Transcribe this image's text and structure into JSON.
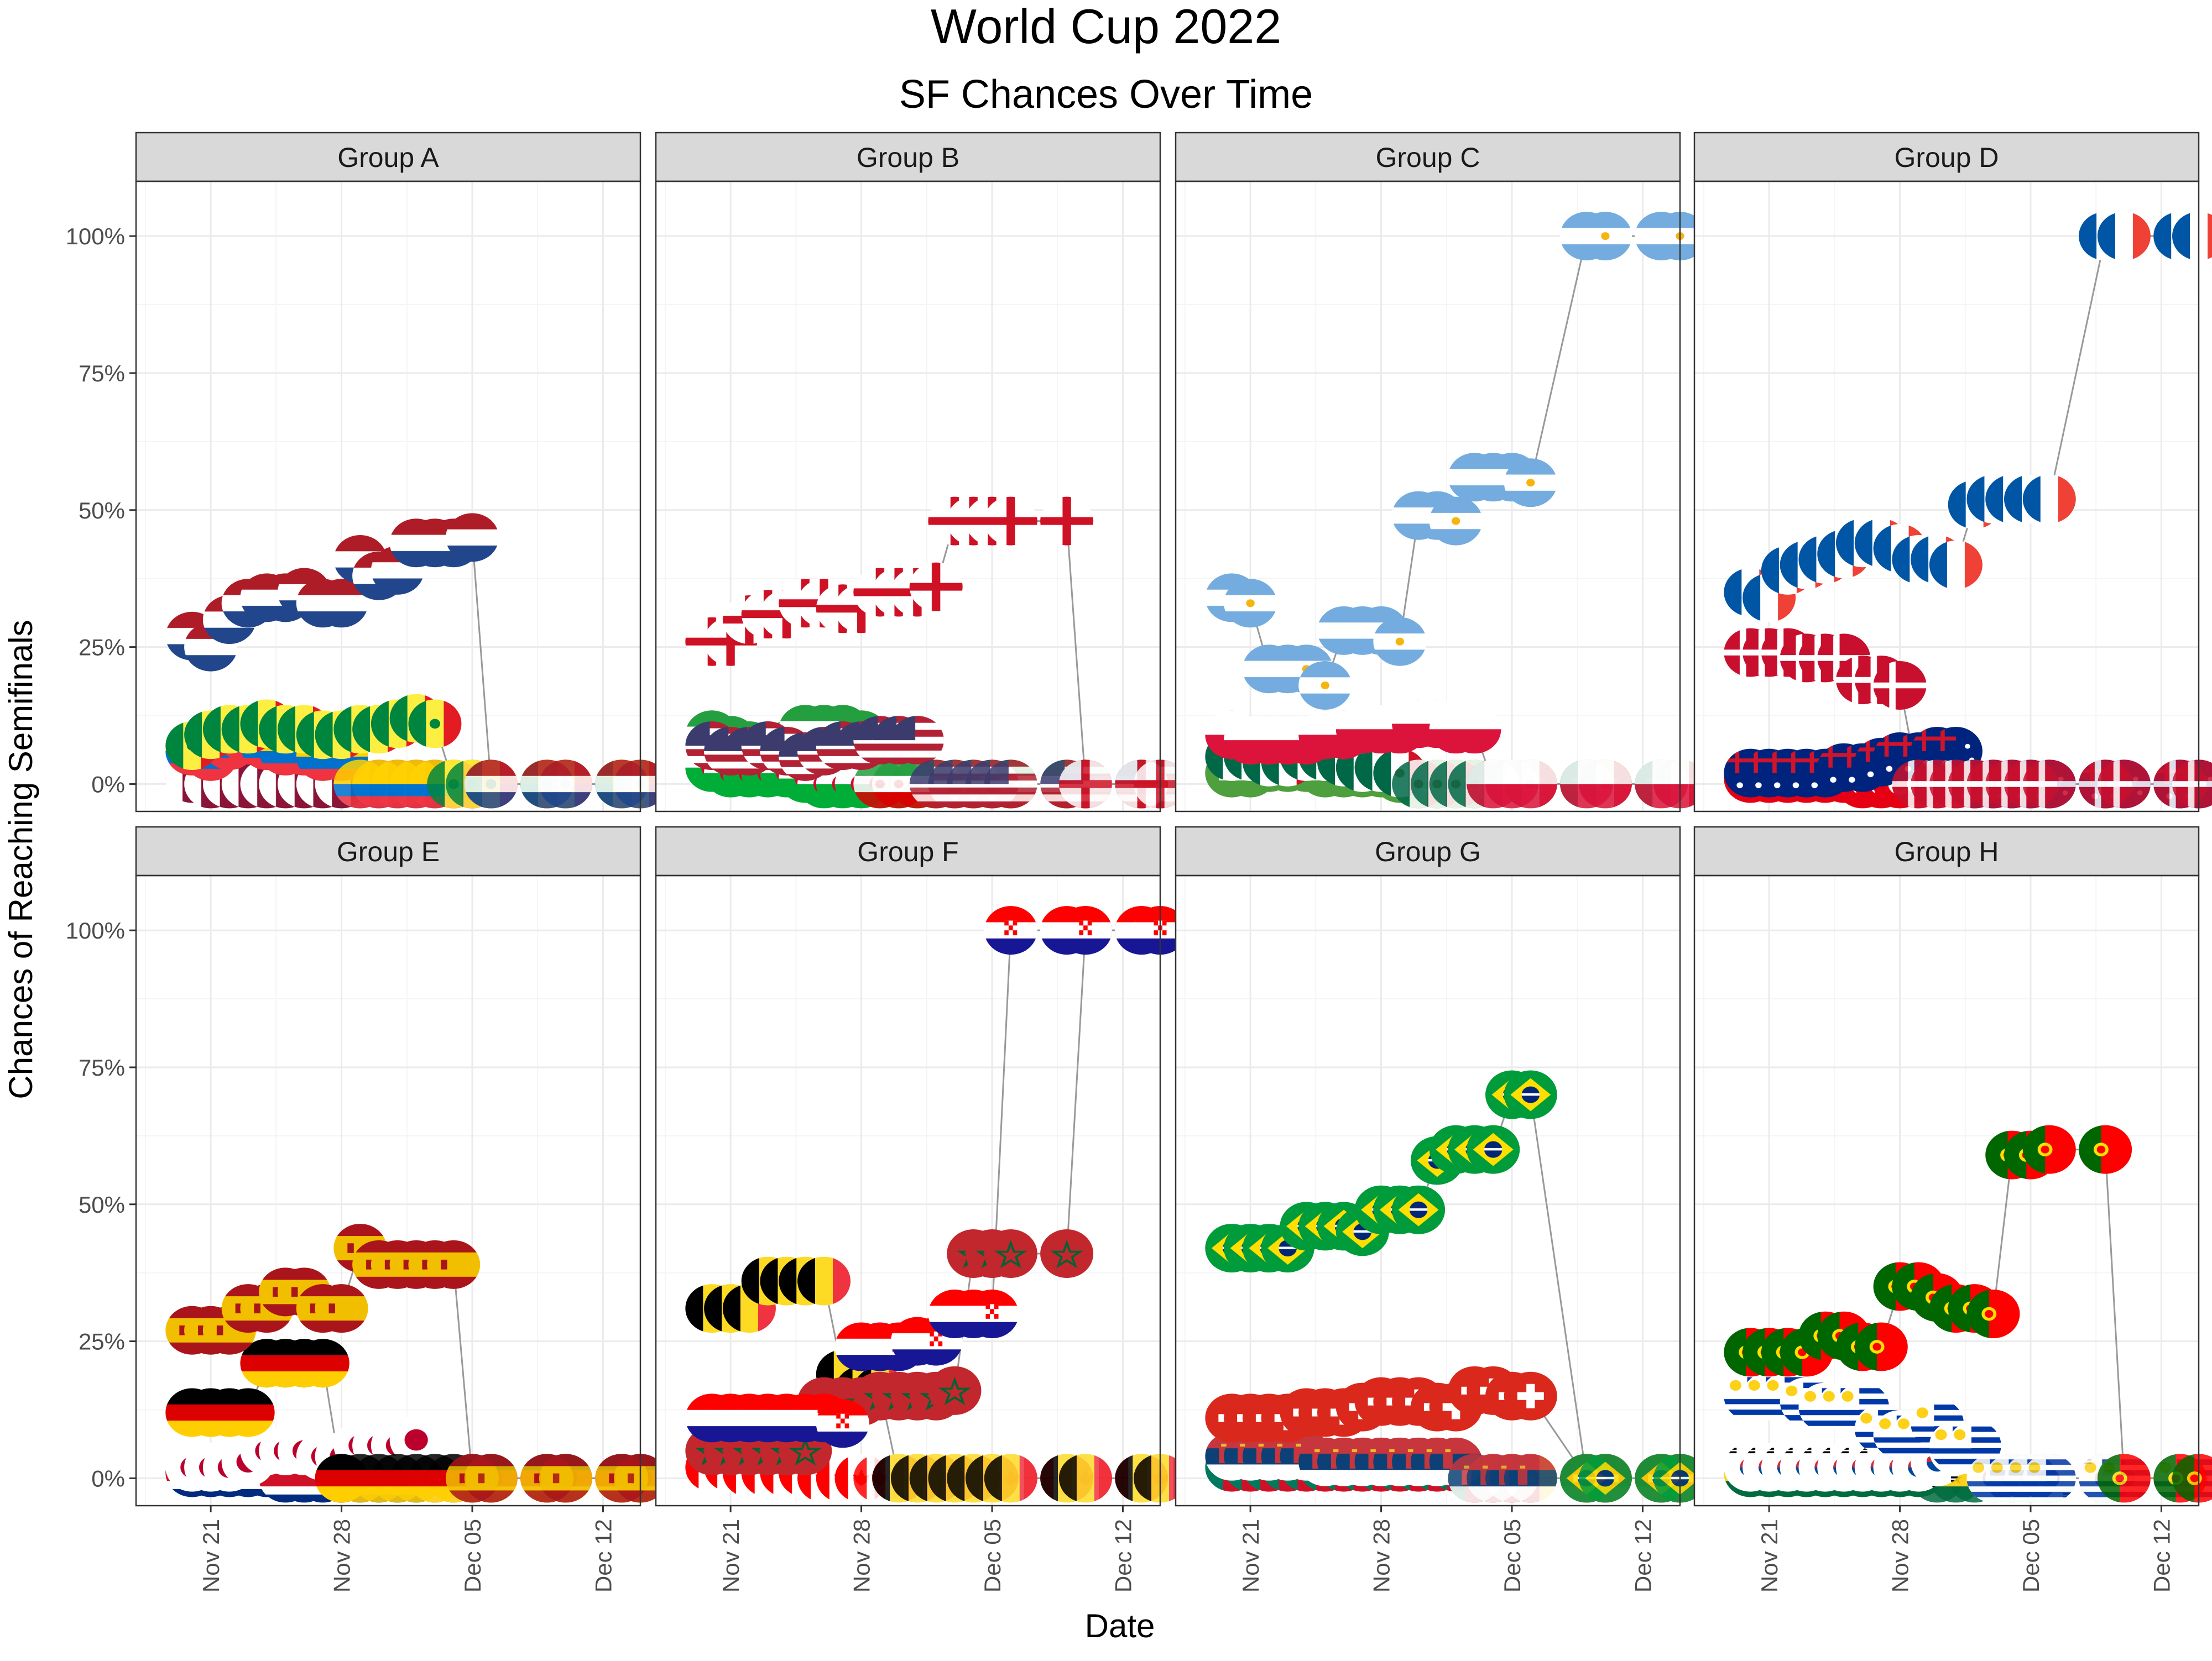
{
  "title": "World Cup 2022",
  "subtitle": "SF Chances Over Time",
  "chart_data": {
    "type": "scatter",
    "facet_layout": "4 columns x 2 rows",
    "xlabel": "Date",
    "ylabel": "Chances of Reaching Semifinals",
    "x_ticks": [
      "Nov 21",
      "Nov 28",
      "Dec 05",
      "Dec 12"
    ],
    "x_tick_dates": [
      "2022-11-21",
      "2022-11-28",
      "2022-12-05",
      "2022-12-12"
    ],
    "y_ticks": [
      "0%",
      "25%",
      "50%",
      "75%",
      "100%"
    ],
    "y_tick_values": [
      0,
      0.25,
      0.5,
      0.75,
      1.0
    ],
    "x_range": [
      "2022-11-17",
      "2022-12-14"
    ],
    "ylim": [
      -0.05,
      1.1
    ],
    "grid": true,
    "point_marker": "circular country flag",
    "colors": {
      "strip_fill": "#d9d9d9",
      "line": "#999999",
      "grid_major": "#ebebeb",
      "grid_minor": "#f5f5f5"
    },
    "date_points": [
      "2022-11-20",
      "2022-11-21",
      "2022-11-22",
      "2022-11-23",
      "2022-11-24",
      "2022-11-25",
      "2022-11-26",
      "2022-11-27",
      "2022-11-28",
      "2022-11-29",
      "2022-11-30",
      "2022-12-01",
      "2022-12-02",
      "2022-12-03",
      "2022-12-04",
      "2022-12-05",
      "2022-12-06",
      "2022-12-09",
      "2022-12-10",
      "2022-12-13",
      "2022-12-14"
    ],
    "panels": [
      {
        "name": "Group A",
        "series": [
          {
            "flag": "netherlands",
            "values": [
              0.27,
              0.25,
              0.3,
              0.33,
              0.34,
              0.34,
              0.35,
              0.33,
              0.33,
              0.41,
              0.38,
              0.39,
              0.44,
              0.44,
              0.44,
              0.45,
              0,
              0,
              0,
              0,
              0
            ]
          },
          {
            "flag": "senegal",
            "values": [
              0.07,
              0.09,
              0.1,
              0.1,
              0.11,
              0.1,
              0.1,
              0.09,
              0.09,
              0.1,
              0.1,
              0.11,
              0.12,
              0.11,
              0,
              0,
              0,
              0,
              0,
              0,
              0
            ]
          },
          {
            "flag": "ecuador",
            "values": [
              0.06,
              0.05,
              0.07,
              0.08,
              0.07,
              0.06,
              0.06,
              0.05,
              0.05,
              0,
              0,
              0,
              0,
              0,
              0,
              0,
              0,
              0,
              0,
              0,
              0
            ]
          },
          {
            "flag": "qatar",
            "values": [
              0.01,
              0,
              0,
              0,
              0,
              0,
              0,
              0,
              0,
              0,
              0,
              0,
              0,
              0,
              0,
              0,
              0,
              0,
              0,
              0,
              0
            ]
          }
        ]
      },
      {
        "name": "Group B",
        "series": [
          {
            "flag": "england",
            "values": [
              0.26,
              0.26,
              0.3,
              0.31,
              0.31,
              0.33,
              0.33,
              0.32,
              0.32,
              0.35,
              0.35,
              0.35,
              0.36,
              0.48,
              0.48,
              0.48,
              0.48,
              0.48,
              0,
              0,
              0
            ]
          },
          {
            "flag": "usa",
            "values": [
              0.07,
              0.06,
              0.06,
              0.07,
              0.06,
              0.05,
              0.06,
              0.07,
              0.07,
              0.08,
              0.08,
              0.08,
              0,
              0,
              0,
              0,
              0,
              0,
              0,
              0,
              0
            ]
          },
          {
            "flag": "iran",
            "values": [
              0.09,
              0.08,
              0.07,
              0.07,
              0.07,
              0.1,
              0.1,
              0.1,
              0.09,
              0,
              0,
              0,
              0,
              0,
              0,
              0,
              0,
              0,
              0,
              0,
              0
            ]
          },
          {
            "flag": "wales",
            "values": [
              0.03,
              0.02,
              0.02,
              0.02,
              0.02,
              0.01,
              0,
              0,
              0,
              0,
              0,
              0,
              0,
              0,
              0,
              0,
              0,
              0,
              0,
              0,
              0
            ]
          }
        ]
      },
      {
        "name": "Group C",
        "series": [
          {
            "flag": "argentina",
            "values": [
              0.34,
              0.33,
              0.21,
              0.21,
              0.21,
              0.18,
              0.28,
              0.28,
              0.28,
              0.26,
              0.49,
              0.49,
              0.48,
              0.56,
              0.56,
              0.56,
              0.55,
              1.0,
              1.0,
              1.0,
              1.0
            ]
          },
          {
            "flag": "poland",
            "values": [
              0.09,
              0.08,
              0.08,
              0.08,
              0.08,
              0.09,
              0.09,
              0.1,
              0.1,
              0.1,
              0.11,
              0.11,
              0.1,
              0.1,
              0,
              0,
              0,
              0,
              0,
              0,
              0
            ]
          },
          {
            "flag": "mexico",
            "values": [
              0.05,
              0.05,
              0.04,
              0.04,
              0.05,
              0.05,
              0.04,
              0.03,
              0.03,
              0.02,
              0,
              0,
              0,
              0,
              0,
              0,
              0,
              0,
              0,
              0,
              0
            ]
          },
          {
            "flag": "saudi",
            "values": [
              0.02,
              0.02,
              0.03,
              0.03,
              0.03,
              0.02,
              0.02,
              0.02,
              0.02,
              0.01,
              0,
              0,
              0,
              0,
              0,
              0,
              0,
              0,
              0,
              0,
              0
            ]
          }
        ]
      },
      {
        "name": "Group D",
        "series": [
          {
            "flag": "france",
            "values": [
              0.35,
              0.34,
              0.39,
              0.4,
              0.41,
              0.42,
              0.44,
              0.44,
              0.43,
              0.41,
              0.41,
              0.4,
              0.51,
              0.52,
              0.52,
              0.52,
              0.52,
              1.0,
              1.0,
              1.0,
              1.0
            ]
          },
          {
            "flag": "denmark",
            "values": [
              0.24,
              0.24,
              0.24,
              0.23,
              0.23,
              0.23,
              0.19,
              0.19,
              0.18,
              0,
              0,
              0,
              0,
              0,
              0,
              0,
              0,
              0,
              0,
              0,
              0
            ]
          },
          {
            "flag": "australia",
            "values": [
              0.02,
              0.02,
              0.02,
              0.02,
              0.02,
              0.03,
              0.03,
              0.04,
              0.05,
              0.05,
              0.06,
              0.06,
              0,
              0,
              0,
              0,
              0,
              0,
              0,
              0,
              0
            ]
          },
          {
            "flag": "tunisia",
            "values": [
              0.01,
              0.01,
              0.01,
              0.01,
              0.01,
              0.01,
              0,
              0,
              0,
              0,
              0,
              0,
              0,
              0,
              0,
              0,
              0,
              0,
              0,
              0,
              0
            ]
          }
        ]
      },
      {
        "name": "Group E",
        "series": [
          {
            "flag": "spain",
            "values": [
              0.27,
              0.27,
              0.27,
              0.31,
              0.31,
              0.34,
              0.34,
              0.31,
              0.31,
              0.42,
              0.39,
              0.39,
              0.39,
              0.39,
              0.39,
              0,
              0,
              0,
              0,
              0,
              0
            ]
          },
          {
            "flag": "germany",
            "values": [
              0.12,
              0.12,
              0.12,
              0.12,
              0.21,
              0.21,
              0.21,
              0.21,
              0.0,
              0.0,
              0.0,
              0.0,
              0,
              0,
              0,
              0,
              0,
              0,
              0,
              0,
              0
            ]
          },
          {
            "flag": "japan",
            "values": [
              0.02,
              0.02,
              0.02,
              0.03,
              0.05,
              0.05,
              0.05,
              0.04,
              0.04,
              0.06,
              0.06,
              0.06,
              0.07,
              0,
              0,
              0,
              0,
              0,
              0,
              0,
              0
            ]
          },
          {
            "flag": "costa_rica",
            "values": [
              0.01,
              0.01,
              0.01,
              0.01,
              0.01,
              0,
              0,
              0,
              0,
              0,
              0,
              0,
              0,
              0,
              0,
              0,
              0,
              0,
              0,
              0,
              0
            ]
          }
        ]
      },
      {
        "name": "Group F",
        "series": [
          {
            "flag": "croatia",
            "values": [
              0.11,
              0.11,
              0.11,
              0.11,
              0.11,
              0.11,
              0.11,
              0.1,
              0.24,
              0.24,
              0.24,
              0.25,
              0.25,
              0.3,
              0.3,
              0.3,
              1.0,
              1.0,
              1.0,
              1.0,
              1.0
            ]
          },
          {
            "flag": "morocco",
            "values": [
              0.05,
              0.05,
              0.05,
              0.05,
              0.05,
              0.05,
              0.14,
              0.14,
              0.14,
              0.15,
              0.15,
              0.15,
              0.15,
              0.16,
              0.41,
              0.41,
              0.41,
              0.41,
              1.0,
              1.0,
              1.0
            ]
          },
          {
            "flag": "belgium",
            "values": [
              0.31,
              0.31,
              0.31,
              0.36,
              0.36,
              0.36,
              0.36,
              0.19,
              0.16,
              0.16,
              0,
              0,
              0,
              0,
              0,
              0,
              0,
              0,
              0,
              0,
              0
            ]
          },
          {
            "flag": "canada",
            "values": [
              0.02,
              0.02,
              0.01,
              0.01,
              0.01,
              0.01,
              0,
              0,
              0,
              0,
              0,
              0,
              0,
              0,
              0,
              0,
              0,
              0,
              0,
              0,
              0
            ]
          }
        ]
      },
      {
        "name": "Group G",
        "series": [
          {
            "flag": "brazil",
            "values": [
              0.42,
              0.42,
              0.42,
              0.42,
              0.46,
              0.46,
              0.46,
              0.45,
              0.49,
              0.49,
              0.49,
              0.58,
              0.6,
              0.6,
              0.6,
              0.7,
              0.7,
              0,
              0,
              0,
              0
            ]
          },
          {
            "flag": "switzerland",
            "values": [
              0.11,
              0.11,
              0.11,
              0.11,
              0.12,
              0.12,
              0.12,
              0.13,
              0.14,
              0.14,
              0.14,
              0.13,
              0.13,
              0.16,
              0.16,
              0.15,
              0.15,
              0,
              0,
              0,
              0
            ]
          },
          {
            "flag": "serbia",
            "values": [
              0.04,
              0.04,
              0.04,
              0.04,
              0.04,
              0.03,
              0.03,
              0.03,
              0.03,
              0.03,
              0.03,
              0.03,
              0.03,
              0,
              0,
              0,
              0,
              0,
              0,
              0,
              0
            ]
          },
          {
            "flag": "cameroon",
            "values": [
              0.02,
              0.02,
              0.02,
              0.02,
              0.02,
              0.02,
              0.02,
              0.02,
              0.02,
              0.02,
              0.02,
              0.02,
              0.02,
              0,
              0,
              0,
              0,
              0,
              0,
              0,
              0
            ]
          }
        ]
      },
      {
        "name": "Group H",
        "series": [
          {
            "flag": "portugal",
            "values": [
              0.23,
              0.23,
              0.23,
              0.23,
              0.26,
              0.26,
              0.24,
              0.24,
              0.35,
              0.35,
              0.33,
              0.31,
              0.31,
              0.3,
              0.59,
              0.59,
              0.6,
              0.6,
              0,
              0,
              0
            ]
          },
          {
            "flag": "uruguay",
            "values": [
              0.15,
              0.15,
              0.15,
              0.14,
              0.13,
              0.13,
              0.13,
              0.09,
              0.08,
              0.08,
              0.1,
              0.06,
              0.06,
              0,
              0,
              0,
              0,
              0,
              0,
              0,
              0
            ]
          },
          {
            "flag": "korea",
            "values": [
              0.02,
              0.02,
              0.02,
              0.02,
              0.02,
              0.02,
              0.02,
              0.02,
              0.02,
              0.02,
              0.03,
              0.05,
              0.05,
              0,
              0,
              0,
              0,
              0,
              0,
              0,
              0
            ]
          },
          {
            "flag": "ghana",
            "values": [
              0.01,
              0.01,
              0.01,
              0.01,
              0.01,
              0.01,
              0.01,
              0.01,
              0.01,
              0.01,
              0,
              0,
              0,
              0,
              0,
              0,
              0,
              0,
              0,
              0,
              0
            ]
          }
        ]
      }
    ]
  }
}
